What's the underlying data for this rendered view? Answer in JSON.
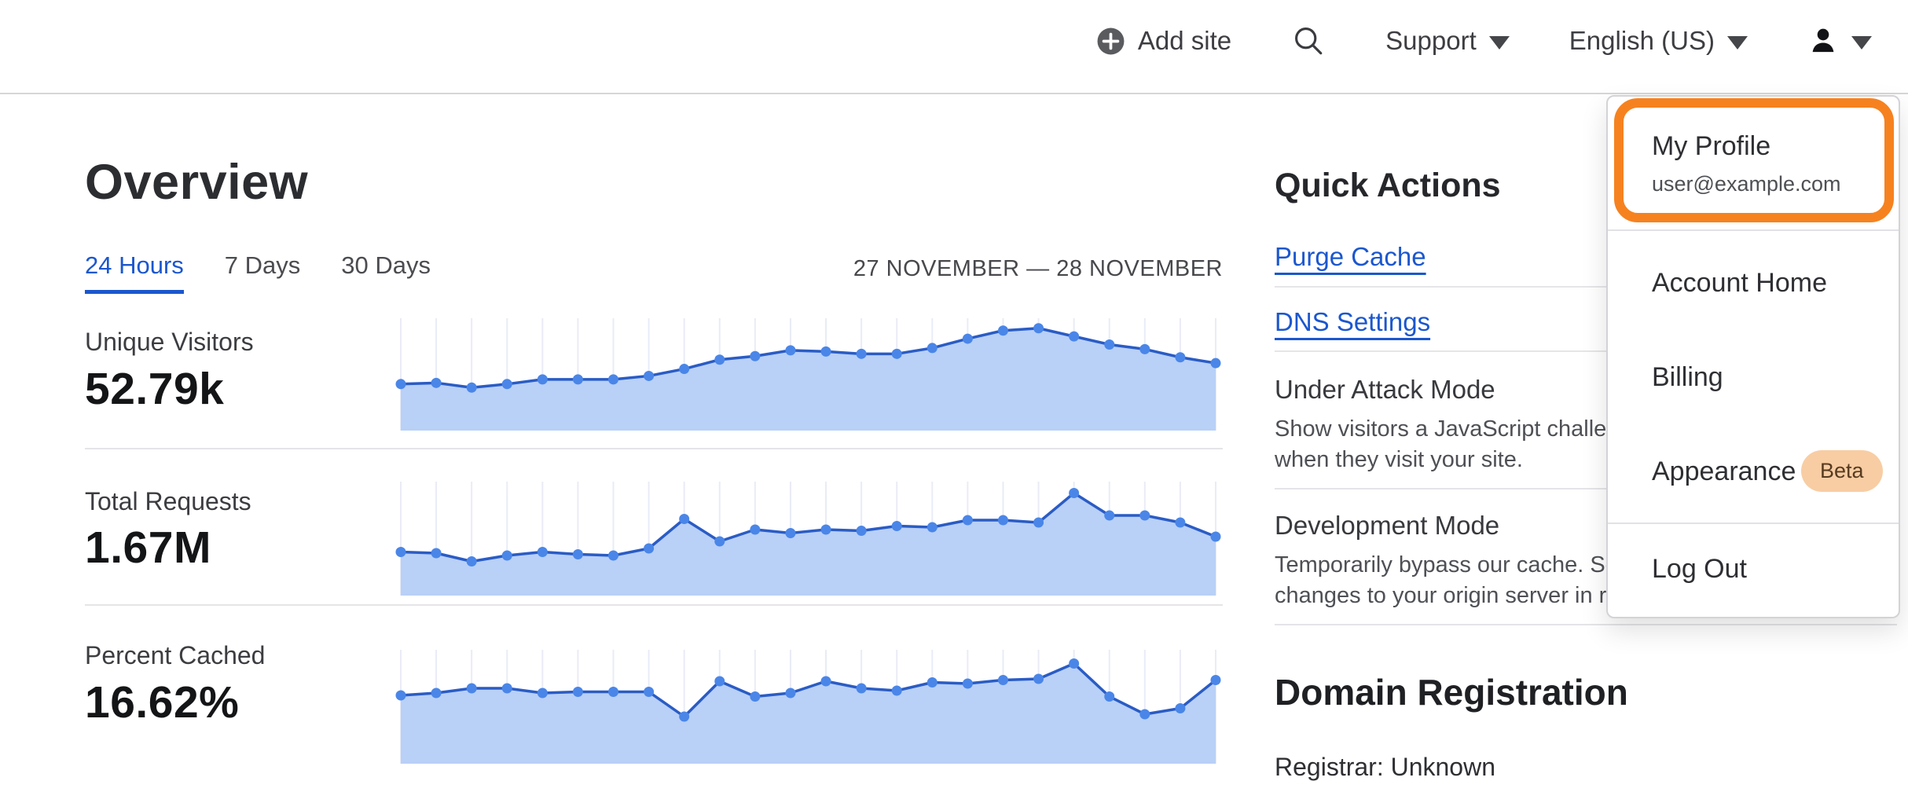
{
  "header": {
    "add_site_label": "Add site",
    "support_label": "Support",
    "language_label": "English (US)"
  },
  "overview": {
    "title": "Overview",
    "tabs": [
      {
        "label": "24 Hours",
        "active": true
      },
      {
        "label": "7 Days",
        "active": false
      },
      {
        "label": "30 Days",
        "active": false
      }
    ],
    "date_range": "27 NOVEMBER — 28 NOVEMBER"
  },
  "metrics": [
    {
      "label": "Unique Visitors",
      "value": "52.79k"
    },
    {
      "label": "Total Requests",
      "value": "1.67M"
    },
    {
      "label": "Percent Cached",
      "value": "16.62%"
    }
  ],
  "chart_data": [
    {
      "type": "area",
      "title": "Unique Visitors (24 Hours)",
      "summary_value": "52.79k",
      "x": "24 hourly points, 27 November — 28 November (no tick labels shown)",
      "y_scale": "relative, unlabeled axis, 0-100",
      "grid": "vertical gridlines only",
      "values": [
        40,
        41,
        37,
        40,
        44,
        44,
        44,
        47,
        53,
        61,
        64,
        69,
        68,
        66,
        66,
        71,
        79,
        86,
        88,
        81,
        74,
        70,
        63,
        58
      ]
    },
    {
      "type": "area",
      "title": "Total Requests (24 Hours)",
      "summary_value": "1.67M",
      "x": "24 hourly points, 27 November — 28 November (no tick labels shown)",
      "y_scale": "relative, unlabeled axis, 0-100",
      "grid": "vertical gridlines only",
      "values": [
        37,
        36,
        29,
        34,
        37,
        35,
        34,
        40,
        65,
        46,
        56,
        53,
        56,
        55,
        59,
        58,
        64,
        64,
        62,
        87,
        68,
        68,
        62,
        50
      ]
    },
    {
      "type": "area",
      "title": "Percent Cached (24 Hours)",
      "summary_value": "16.62%",
      "x": "24 hourly points, 27 November — 28 November (no tick labels shown)",
      "y_scale": "relative, unlabeled axis, 0-100",
      "grid": "vertical gridlines only",
      "values": [
        58,
        60,
        64,
        64,
        60,
        61,
        61,
        61,
        40,
        70,
        57,
        60,
        70,
        64,
        62,
        69,
        68,
        71,
        72,
        85,
        57,
        42,
        47,
        71
      ]
    }
  ],
  "quick_actions": {
    "title": "Quick Actions",
    "links": [
      {
        "label": "Purge Cache"
      },
      {
        "label": "DNS Settings"
      }
    ],
    "toggles": [
      {
        "title": "Under Attack Mode",
        "description_lines": [
          "Show visitors a JavaScript challenge",
          "when they visit your site."
        ]
      },
      {
        "title": "Development Mode",
        "description_lines": [
          "Temporarily bypass our cache. See",
          "changes to your origin server in realtime."
        ]
      }
    ]
  },
  "domain_registration": {
    "title": "Domain Registration",
    "registrar": "Registrar: Unknown"
  },
  "account_menu": {
    "profile": {
      "label": "My Profile",
      "email": "user@example.com"
    },
    "items": [
      {
        "label": "Account Home"
      },
      {
        "label": "Billing"
      },
      {
        "label": "Appearance",
        "badge": "Beta"
      },
      {
        "label": "Log Out"
      }
    ]
  },
  "colors": {
    "accent_blue": "#1b57ce",
    "highlight_orange": "#f6821f",
    "beta_bg": "#f8cda3",
    "beta_text": "#573b20",
    "chart_line": "#2a5cc5",
    "chart_dot": "#4a86e8",
    "chart_fill": "#b9d0f7",
    "chart_grid": "#e9ecf6"
  }
}
